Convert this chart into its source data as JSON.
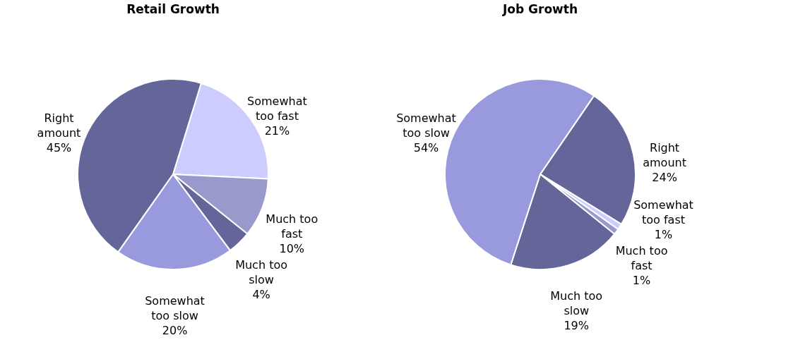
{
  "chart_data": [
    {
      "type": "pie",
      "title": "Retail Growth",
      "categories": [
        "Somewhat too fast",
        "Much too fast",
        "Much too slow",
        "Somewhat too slow",
        "Right amount"
      ],
      "values": [
        21,
        10,
        4,
        20,
        45
      ],
      "value_labels": [
        "21%",
        "10%",
        "4%",
        "20%",
        "45%"
      ],
      "colors": [
        "#ccccff",
        "#9999cc",
        "#646699",
        "#9999dd",
        "#646699"
      ]
    },
    {
      "type": "pie",
      "title": "Job Growth",
      "categories": [
        "Right amount",
        "Somewhat too fast",
        "Much too fast",
        "Much too slow",
        "Somewhat too slow"
      ],
      "values": [
        24,
        1,
        1,
        19,
        54
      ],
      "value_labels": [
        "24%",
        "1%",
        "1%",
        "19%",
        "54%"
      ],
      "colors": [
        "#646699",
        "#ccccff",
        "#9999cc",
        "#646699",
        "#9999dd"
      ]
    }
  ]
}
